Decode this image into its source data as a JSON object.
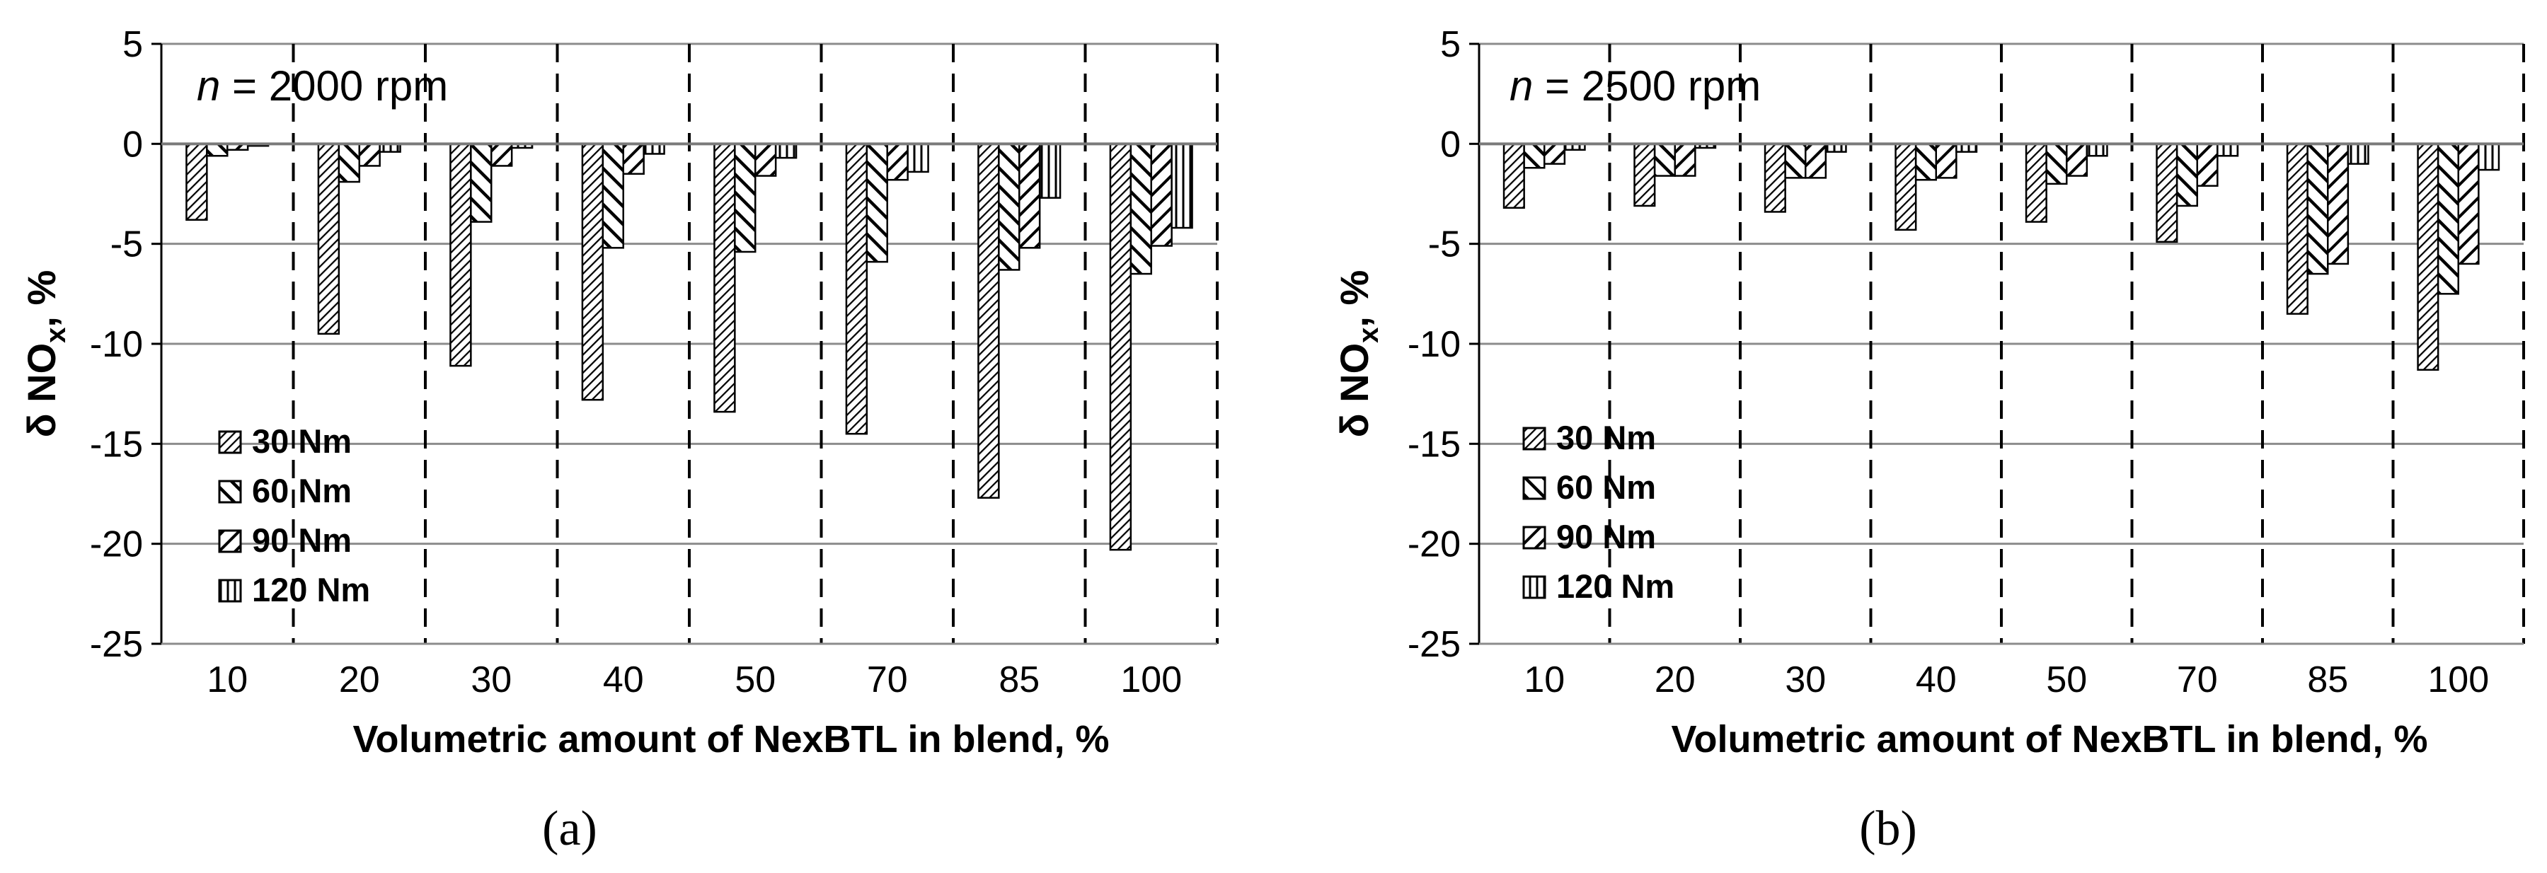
{
  "chart_data": [
    {
      "type": "bar",
      "panel_label": "(a)",
      "annotation_n": "n",
      "annotation_rest": " = 2000 rpm",
      "xlabel": "Volumetric amount of NexBTL in blend, %",
      "ylabel_main": "δ NO",
      "ylabel_sub": "x",
      "ylabel_end": ", %",
      "ylim": [
        -25,
        5
      ],
      "yticks": [
        5,
        0,
        -5,
        -10,
        -15,
        -20,
        -25
      ],
      "grid": true,
      "legend_position": "bottom-left",
      "categories": [
        "10",
        "20",
        "30",
        "40",
        "50",
        "70",
        "85",
        "100"
      ],
      "series": [
        {
          "name": "30 Nm",
          "pattern": "diag-dense",
          "values": [
            -3.8,
            -9.5,
            -11.1,
            -12.8,
            -13.4,
            -14.5,
            -17.7,
            -20.3
          ]
        },
        {
          "name": "60 Nm",
          "pattern": "diag-wide",
          "values": [
            -0.6,
            -1.9,
            -3.9,
            -5.2,
            -5.4,
            -5.9,
            -6.3,
            -6.5
          ]
        },
        {
          "name": "90 Nm",
          "pattern": "diag-back",
          "values": [
            -0.3,
            -1.1,
            -1.1,
            -1.5,
            -1.6,
            -1.8,
            -5.2,
            -5.1
          ]
        },
        {
          "name": "120 Nm",
          "pattern": "vertical",
          "values": [
            -0.1,
            -0.4,
            -0.2,
            -0.5,
            -0.7,
            -1.4,
            -2.7,
            -4.2
          ]
        }
      ]
    },
    {
      "type": "bar",
      "panel_label": "(b)",
      "annotation_n": "n",
      "annotation_rest": " = 2500 rpm",
      "xlabel": "Volumetric amount of NexBTL in blend, %",
      "ylabel_main": "δ NO",
      "ylabel_sub": "x",
      "ylabel_end": ", %",
      "ylim": [
        -25,
        5
      ],
      "yticks": [
        5,
        0,
        -5,
        -10,
        -15,
        -20,
        -25
      ],
      "grid": true,
      "legend_position": "bottom-left",
      "categories": [
        "10",
        "20",
        "30",
        "40",
        "50",
        "70",
        "85",
        "100"
      ],
      "series": [
        {
          "name": "30 Nm",
          "pattern": "diag-dense",
          "values": [
            -3.2,
            -3.1,
            -3.4,
            -4.3,
            -3.9,
            -4.9,
            -8.5,
            -11.3
          ]
        },
        {
          "name": "60 Nm",
          "pattern": "diag-wide",
          "values": [
            -1.2,
            -1.6,
            -1.7,
            -1.8,
            -2.0,
            -3.1,
            -6.5,
            -7.5
          ]
        },
        {
          "name": "90 Nm",
          "pattern": "diag-back",
          "values": [
            -1.0,
            -1.6,
            -1.7,
            -1.7,
            -1.6,
            -2.1,
            -6.0,
            -6.0
          ]
        },
        {
          "name": "120 Nm",
          "pattern": "vertical",
          "values": [
            -0.3,
            -0.2,
            -0.4,
            -0.4,
            -0.6,
            -0.6,
            -1.0,
            -1.3
          ]
        }
      ]
    }
  ]
}
